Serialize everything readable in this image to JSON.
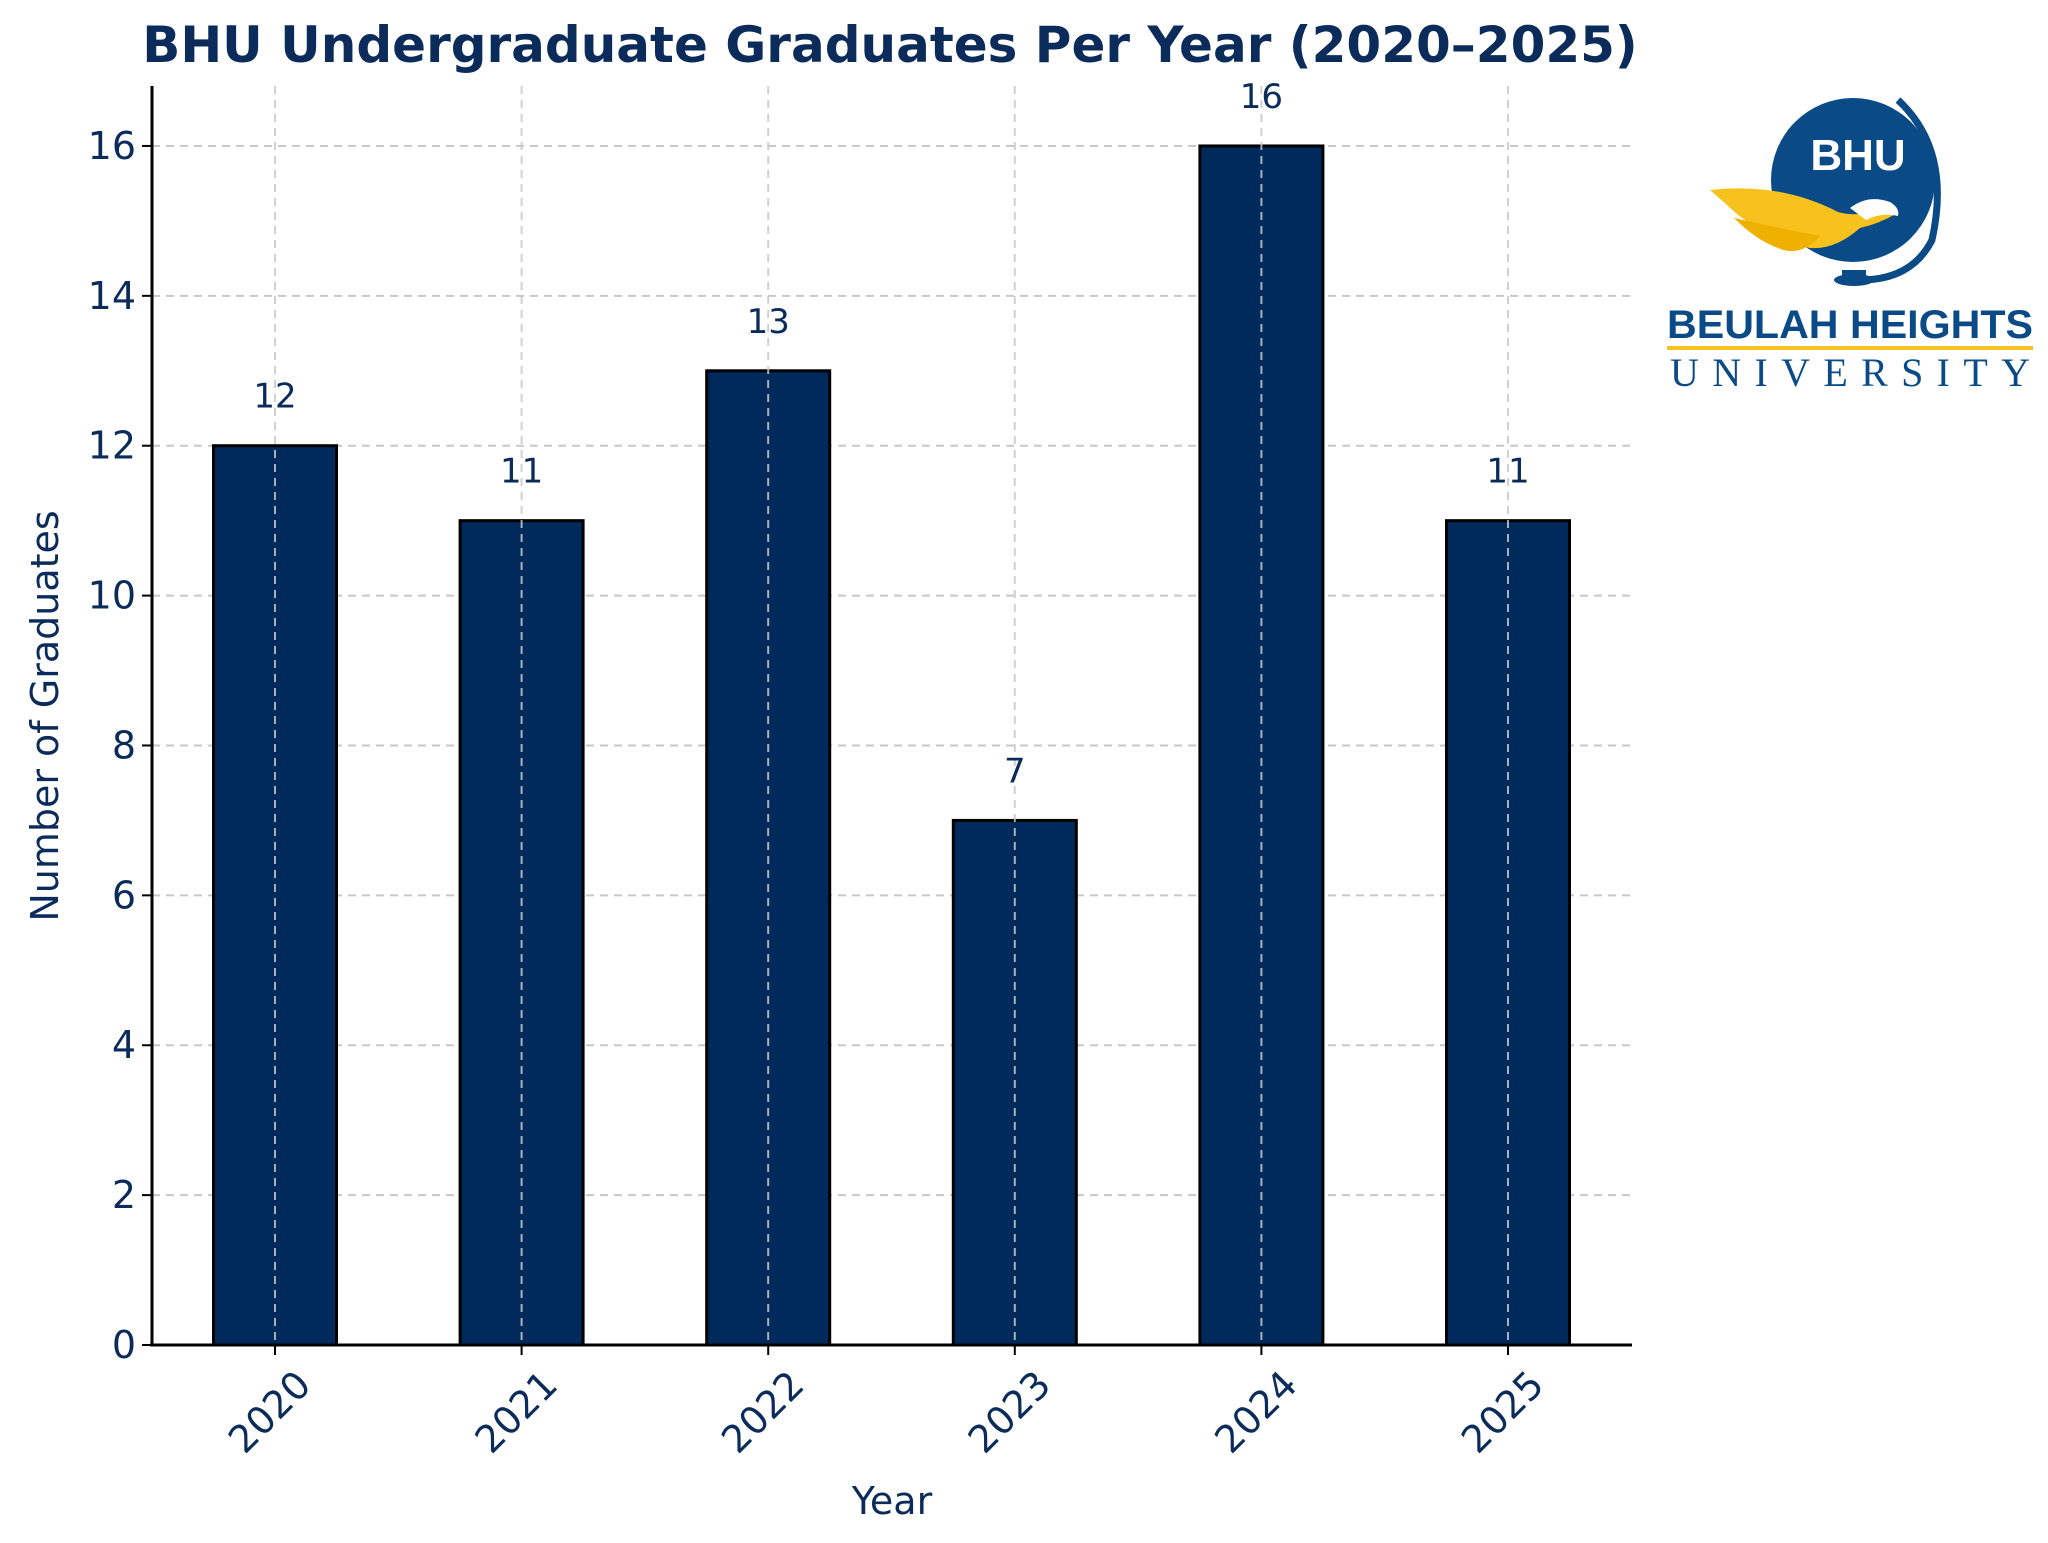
{
  "chart_data": {
    "type": "bar",
    "title": "BHU Undergraduate Graduates Per Year (2020–2025)",
    "xlabel": "Year",
    "ylabel": "Number of Graduates",
    "categories": [
      "2020",
      "2021",
      "2022",
      "2023",
      "2024",
      "2025"
    ],
    "values": [
      12,
      11,
      13,
      7,
      16,
      11
    ],
    "data_labels": [
      "12",
      "11",
      "13",
      "7",
      "16",
      "11"
    ],
    "ylim": [
      0,
      16.8
    ],
    "yticks": [
      0,
      2,
      4,
      6,
      8,
      10,
      12,
      14,
      16
    ],
    "ytick_labels": [
      "0",
      "2",
      "4",
      "6",
      "8",
      "10",
      "12",
      "14",
      "16"
    ],
    "grid": true,
    "colors": {
      "bar": "#012a5c",
      "bar_edge": "#000000",
      "text": "#0b2c5a",
      "grid": "#c8c8c8",
      "axis": "#000000"
    }
  },
  "logo": {
    "monogram": "BHU",
    "name_line1": "BEULAH HEIGHTS",
    "name_line2": "UNIVERSITY",
    "colors": {
      "navy": "#0a4a86",
      "gold": "#f7c21d"
    }
  }
}
